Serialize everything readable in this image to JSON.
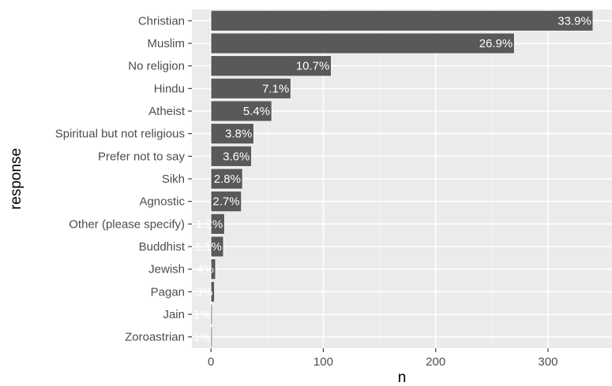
{
  "chart_data": {
    "type": "bar",
    "orientation": "horizontal",
    "categories": [
      "Christian",
      "Muslim",
      "No religion",
      "Hindu",
      "Atheist",
      "Spiritual but not religious",
      "Prefer not to say",
      "Sikh",
      "Agnostic",
      "Other (please specify)",
      "Buddhist",
      "Jewish",
      "Pagan",
      "Jain",
      "Zoroastrian"
    ],
    "values": [
      340,
      270,
      107,
      71,
      54,
      38,
      36,
      28,
      27,
      12,
      11,
      4,
      3,
      1,
      1
    ],
    "labels": [
      "33.9%",
      "26.9%",
      "10.7%",
      "7.1%",
      "5.4%",
      "3.8%",
      "3.6%",
      "2.8%",
      "2.7%",
      "1.2%",
      "1.1%",
      ".4%",
      ".3%",
      ".1%",
      ".1%"
    ],
    "xlabel": "n",
    "ylabel": "response",
    "xlim": [
      -17,
      357
    ],
    "xticks": [
      0,
      100,
      200,
      300
    ],
    "grid": true,
    "colors": {
      "bar": "#595959",
      "panel_background": "#ebebeb",
      "grid_major": "#ffffff",
      "grid_minor": "#f5f5f5",
      "bar_label": "#ffffff",
      "tick_label": "#4d4d4d",
      "axis_title": "#000000",
      "tick": "#333333"
    }
  }
}
